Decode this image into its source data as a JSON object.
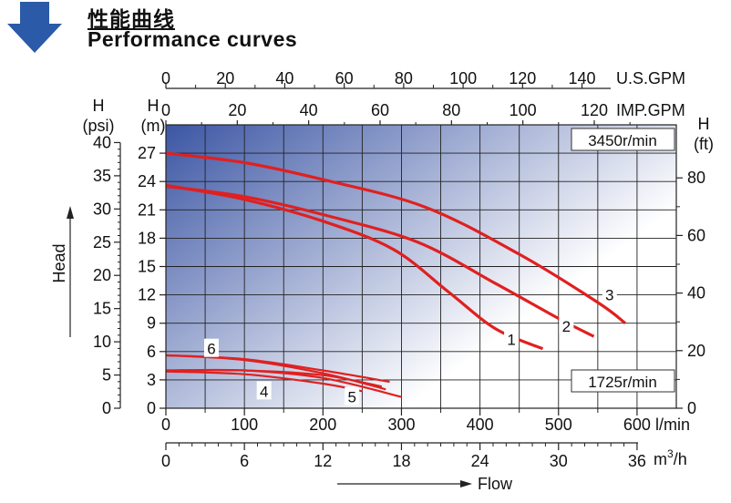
{
  "header": {
    "title_cn": "性能曲线",
    "title_en": "Performance curves",
    "arrow_icon": "down-arrow-icon",
    "arrow_color": "#2a5aa8"
  },
  "chart_data": {
    "type": "line",
    "speed_high": "3450r/min",
    "speed_low": "1725r/min",
    "xlabel_flow": "Flow",
    "head_label": "Head",
    "axes": {
      "bottom_lmin": {
        "unit": "l/min",
        "ticks": [
          "0",
          "100",
          "200",
          "300",
          "400",
          "500",
          "600"
        ],
        "range": [
          0,
          650
        ]
      },
      "bottom_m3h": {
        "unit_base": "m",
        "unit_sup": "3",
        "unit_tail": "/h",
        "ticks": [
          "0",
          "6",
          "12",
          "18",
          "24",
          "30",
          "36"
        ]
      },
      "top_usgpm": {
        "unit": "U.S.GPM",
        "ticks": [
          "0",
          "20",
          "40",
          "60",
          "80",
          "100",
          "120",
          "140"
        ]
      },
      "top_impgpm": {
        "unit": "IMP.GPM",
        "ticks": [
          "0",
          "20",
          "40",
          "60",
          "80",
          "100",
          "120"
        ]
      },
      "left_m": {
        "label_top": "H",
        "label_unit": "(m)",
        "ticks": [
          "0",
          "3",
          "6",
          "9",
          "12",
          "15",
          "18",
          "21",
          "24",
          "27"
        ],
        "range": [
          0,
          30
        ]
      },
      "left_psi": {
        "label_top": "H",
        "label_unit": "(psi)",
        "ticks": [
          "0",
          "5",
          "10",
          "15",
          "20",
          "25",
          "30",
          "35",
          "40"
        ]
      },
      "right_ft": {
        "label_top": "H",
        "label_unit": "(ft)",
        "ticks": [
          "0",
          "20",
          "40",
          "60",
          "80"
        ]
      }
    },
    "grid": true,
    "background_gradient": [
      "#3c56a4",
      "#ffffff"
    ],
    "curve_color": "#e02020",
    "series": [
      {
        "name": "1",
        "x": [
          0,
          100,
          200,
          290,
          360,
          420,
          480
        ],
        "y": [
          23.6,
          22.1,
          19.8,
          16.8,
          12.3,
          8.4,
          6.3
        ]
      },
      {
        "name": "2",
        "x": [
          0,
          100,
          200,
          320,
          420,
          500,
          545
        ],
        "y": [
          23.5,
          22.4,
          20.5,
          17.6,
          13.2,
          9.5,
          7.6
        ]
      },
      {
        "name": "3",
        "x": [
          0,
          100,
          200,
          330,
          450,
          550,
          585
        ],
        "y": [
          27.0,
          26.0,
          24.2,
          21.3,
          16.3,
          11.2,
          9.0
        ]
      },
      {
        "name": "4",
        "x": [
          0,
          100,
          200,
          250
        ],
        "y": [
          3.9,
          3.6,
          2.6,
          1.8
        ]
      },
      {
        "name": "5",
        "x": [
          0,
          100,
          200,
          300
        ],
        "y": [
          4.0,
          4.0,
          3.2,
          1.2
        ]
      },
      {
        "name": "6",
        "x": [
          0,
          100,
          200,
          280
        ],
        "y": [
          5.6,
          5.1,
          3.7,
          2.0
        ]
      }
    ],
    "extra_low_speed_lines": [
      {
        "x": [
          0,
          100,
          200,
          275
        ],
        "y": [
          4.0,
          4.0,
          3.5,
          2.3
        ]
      },
      {
        "x": [
          0,
          100,
          200,
          285
        ],
        "y": [
          5.6,
          5.2,
          4.0,
          2.8
        ]
      }
    ],
    "series_labels": [
      {
        "name": "1",
        "x": 440,
        "y": 7.3
      },
      {
        "name": "2",
        "x": 510,
        "y": 8.7
      },
      {
        "name": "3",
        "x": 565,
        "y": 12.0
      },
      {
        "name": "4",
        "x": 125,
        "y": 1.8
      },
      {
        "name": "5",
        "x": 237,
        "y": 1.2
      },
      {
        "name": "6",
        "x": 58,
        "y": 6.3
      }
    ]
  }
}
